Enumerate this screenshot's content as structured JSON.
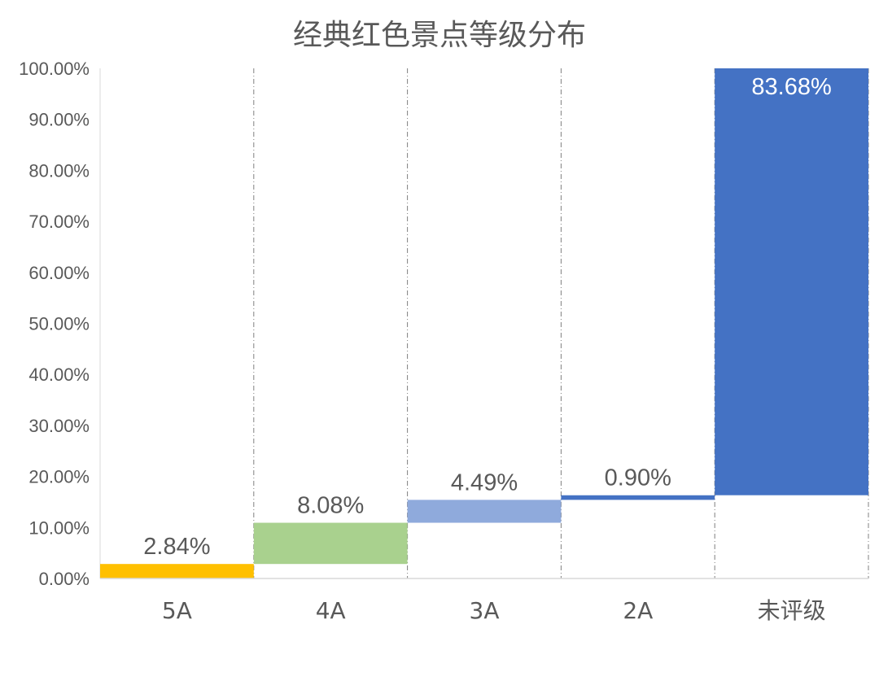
{
  "chart_data": {
    "type": "bar",
    "subtype": "waterfall",
    "title": "经典红色景点等级分布",
    "xlabel": "",
    "ylabel": "",
    "categories": [
      "5A",
      "4A",
      "3A",
      "2A",
      "未评级"
    ],
    "values": [
      2.84,
      8.08,
      4.49,
      0.9,
      83.68
    ],
    "labels": [
      "2.84%",
      "8.08%",
      "4.49%",
      "0.90%",
      "83.68%"
    ],
    "colors": [
      "#FFC000",
      "#A9D18E",
      "#8FAADC",
      "#4472C4",
      "#4472C4"
    ],
    "ylim": [
      0,
      100
    ],
    "yticks": [
      "0.00%",
      "10.00%",
      "20.00%",
      "30.00%",
      "40.00%",
      "50.00%",
      "60.00%",
      "70.00%",
      "80.00%",
      "90.00%",
      "100.00%"
    ],
    "grid": "vertical dashed separators",
    "legend": "none"
  }
}
